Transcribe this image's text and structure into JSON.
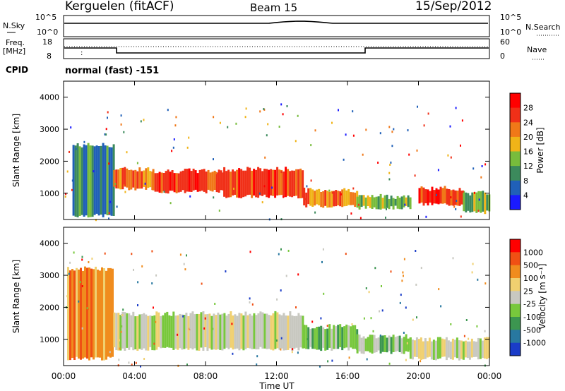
{
  "header": {
    "station": "Kerguelen (fitACF)",
    "beam": "Beam 15",
    "date": "15/Sep/2012"
  },
  "summary_panels": {
    "nsky_label": "N.Sky",
    "nsky_ticks": [
      "10^5",
      "10^0"
    ],
    "nsearch_label": "N.Search",
    "nsearch_ticks": [
      "10^5",
      "10^0"
    ],
    "freq_label_1": "Freq.",
    "freq_label_2": "[MHz]",
    "freq_ticks": [
      "18",
      "8"
    ],
    "nave_label": "Nave",
    "nave_ticks": [
      "60",
      "0"
    ],
    "cpid_label": "CPID",
    "cpid_value": "normal (fast) -151"
  },
  "chart_data": [
    {
      "type": "heatmap",
      "name": "power",
      "ylabel": "Slant Range [km]",
      "ylim": [
        180,
        4500
      ],
      "yticks": [
        "4000",
        "3000",
        "2000",
        "1000"
      ],
      "colorbar_label": "Power [dB]",
      "colorbar_ticks": [
        "28",
        "24",
        "20",
        "16",
        "12",
        "8",
        "4"
      ],
      "colors": [
        "#1a1aff",
        "#2060b8",
        "#3c8a5c",
        "#78bc3c",
        "#f0b418",
        "#f07818",
        "#f03018",
        "#ff0000"
      ],
      "bands": [
        {
          "start_h": 0.5,
          "end_h": 2.8,
          "low_km": 300,
          "high_km": 2500,
          "level": 2
        },
        {
          "start_h": 2.8,
          "end_h": 5.0,
          "low_km": 1150,
          "high_km": 1750,
          "level": 5
        },
        {
          "start_h": 5.0,
          "end_h": 9.0,
          "low_km": 1050,
          "high_km": 1700,
          "level": 6
        },
        {
          "start_h": 9.0,
          "end_h": 13.5,
          "low_km": 900,
          "high_km": 1750,
          "level": 6
        },
        {
          "start_h": 13.5,
          "end_h": 16.5,
          "low_km": 600,
          "high_km": 1100,
          "level": 5
        },
        {
          "start_h": 16.5,
          "end_h": 19.5,
          "low_km": 550,
          "high_km": 900,
          "level": 3
        },
        {
          "start_h": 20.0,
          "end_h": 22.5,
          "low_km": 650,
          "high_km": 1150,
          "level": 6
        },
        {
          "start_h": 22.5,
          "end_h": 24.0,
          "low_km": 400,
          "high_km": 1000,
          "level": 3
        }
      ]
    },
    {
      "type": "heatmap",
      "name": "velocity",
      "ylabel": "Slant Range [km]",
      "ylim": [
        180,
        4500
      ],
      "yticks": [
        "4000",
        "3000",
        "2000",
        "1000"
      ],
      "colorbar_label": "Velocity [m s⁻¹]",
      "colorbar_ticks": [
        "1000",
        "500",
        "100",
        "25",
        "-25",
        "-100",
        "-500",
        "-1000"
      ],
      "colors": [
        "#1a3cc8",
        "#2878a0",
        "#3c9650",
        "#78c83c",
        "#c8c8c0",
        "#f0d070",
        "#f08c1e",
        "#f05014",
        "#ff0000"
      ],
      "bands": [
        {
          "start_h": 0.2,
          "end_h": 2.8,
          "low_km": 400,
          "high_km": 3200,
          "level": 6
        },
        {
          "start_h": 2.8,
          "end_h": 13.5,
          "low_km": 700,
          "high_km": 1800,
          "level": 4
        },
        {
          "start_h": 13.5,
          "end_h": 16.5,
          "low_km": 700,
          "high_km": 1400,
          "level": 3
        },
        {
          "start_h": 16.5,
          "end_h": 19.5,
          "low_km": 600,
          "high_km": 1100,
          "level": 3
        },
        {
          "start_h": 19.5,
          "end_h": 24.0,
          "low_km": 400,
          "high_km": 1000,
          "level": 4
        }
      ]
    }
  ],
  "x_axis": {
    "ticks": [
      "00:00",
      "04:00",
      "08:00",
      "12:00",
      "16:00",
      "20:00",
      "00:00"
    ],
    "label": "Time UT",
    "range_h": [
      0,
      24
    ]
  }
}
